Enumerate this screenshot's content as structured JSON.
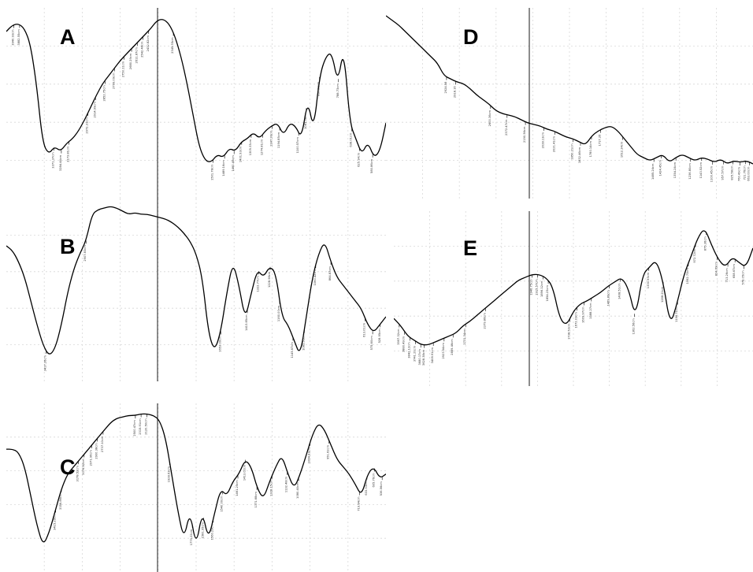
{
  "chart_data": [
    {
      "type": "line",
      "label": "A",
      "series": [
        {
          "values": [
            0.88,
            0.92,
            0.93,
            0.9,
            0.8,
            0.55,
            0.18,
            0.1,
            0.15,
            0.12,
            0.17,
            0.2,
            0.25,
            0.32,
            0.4,
            0.48,
            0.55,
            0.6,
            0.65,
            0.7,
            0.74,
            0.78,
            0.82,
            0.86,
            0.9,
            0.95,
            0.96,
            0.93,
            0.85,
            0.72,
            0.55,
            0.35,
            0.15,
            0.06,
            0.05,
            0.1,
            0.08,
            0.14,
            0.12,
            0.18,
            0.2,
            0.24,
            0.2,
            0.25,
            0.28,
            0.3,
            0.22,
            0.3,
            0.28,
            0.2,
            0.45,
            0.25,
            0.6,
            0.72,
            0.75,
            0.55,
            0.78,
            0.3,
            0.2,
            0.1,
            0.18,
            0.08,
            0.12,
            0.3
          ]
        }
      ],
      "peaks": [
        {
          "x": 0.02,
          "label": "3940.93cm"
        },
        {
          "x": 0.035,
          "label": "3882.55cm"
        },
        {
          "x": 0.125,
          "label": "3371.37cm"
        },
        {
          "x": 0.145,
          "label": "3284.44cm"
        },
        {
          "x": 0.165,
          "label": "3173.81cm"
        },
        {
          "x": 0.215,
          "label": "2972.31cm"
        },
        {
          "x": 0.235,
          "label": "2914.99cm"
        },
        {
          "x": 0.26,
          "label": "2852.75cm"
        },
        {
          "x": 0.285,
          "label": "2799.09cm"
        },
        {
          "x": 0.31,
          "label": "2750.11cm"
        },
        {
          "x": 0.33,
          "label": "2680.29cm"
        },
        {
          "x": 0.345,
          "label": "2611.87cm"
        },
        {
          "x": 0.36,
          "label": "2542.48cm"
        },
        {
          "x": 0.375,
          "label": "2432.82cm"
        },
        {
          "x": 0.44,
          "label": "2345.35cm"
        },
        {
          "x": 0.545,
          "label": "1501.78cm"
        },
        {
          "x": 0.575,
          "label": "1489.16cm"
        },
        {
          "x": 0.6,
          "label": "1460.49cm"
        },
        {
          "x": 0.62,
          "label": "1401.93cm"
        },
        {
          "x": 0.645,
          "label": "1305.33cm"
        },
        {
          "x": 0.675,
          "label": "1274.81cm"
        },
        {
          "x": 0.7,
          "label": "1247.99cm"
        },
        {
          "x": 0.72,
          "label": "1194.85cm"
        },
        {
          "x": 0.77,
          "label": "1100.57cm"
        },
        {
          "x": 0.79,
          "label": "1081.38cm"
        },
        {
          "x": 0.825,
          "label": "887.98cm"
        },
        {
          "x": 0.875,
          "label": "788.73cm"
        },
        {
          "x": 0.91,
          "label": "638.01cm"
        },
        {
          "x": 0.93,
          "label": "625.14cm"
        },
        {
          "x": 0.965,
          "label": "580.86cm"
        }
      ]
    },
    {
      "type": "line",
      "label": "B",
      "series": [
        {
          "values": [
            0.75,
            0.72,
            0.65,
            0.55,
            0.4,
            0.25,
            0.12,
            0.05,
            0.1,
            0.25,
            0.45,
            0.6,
            0.7,
            0.78,
            0.95,
            0.98,
            0.99,
            1.0,
            0.99,
            0.97,
            0.95,
            0.96,
            0.95,
            0.95,
            0.94,
            0.93,
            0.92,
            0.9,
            0.87,
            0.83,
            0.78,
            0.7,
            0.55,
            0.2,
            0.08,
            0.2,
            0.45,
            0.65,
            0.5,
            0.28,
            0.45,
            0.6,
            0.55,
            0.62,
            0.58,
            0.3,
            0.25,
            0.15,
            0.05,
            0.3,
            0.55,
            0.7,
            0.78,
            0.65,
            0.55,
            0.5,
            0.45,
            0.4,
            0.35,
            0.25,
            0.2,
            0.25,
            0.3
          ]
        }
      ],
      "peaks": [
        {
          "x": 0.105,
          "label": "3417.26cm"
        },
        {
          "x": 0.21,
          "label": "2907.83cm"
        },
        {
          "x": 0.565,
          "label": "1653.00cm"
        },
        {
          "x": 0.635,
          "label": "1413.85cm"
        },
        {
          "x": 0.665,
          "label": "1322.77cm"
        },
        {
          "x": 0.695,
          "label": "1228.98cm"
        },
        {
          "x": 0.72,
          "label": "1160.00cm"
        },
        {
          "x": 0.755,
          "label": "1145.67cm"
        },
        {
          "x": 0.785,
          "label": "1083.51cm"
        },
        {
          "x": 0.815,
          "label": "1060.42cm"
        },
        {
          "x": 0.855,
          "label": "864.87cm"
        },
        {
          "x": 0.945,
          "label": "613.01cm"
        },
        {
          "x": 0.965,
          "label": "575.60cm"
        },
        {
          "x": 0.985,
          "label": "528.95cm"
        }
      ]
    },
    {
      "type": "line",
      "label": "C",
      "series": [
        {
          "values": [
            0.72,
            0.72,
            0.7,
            0.6,
            0.4,
            0.2,
            0.06,
            0.15,
            0.3,
            0.45,
            0.55,
            0.6,
            0.65,
            0.7,
            0.75,
            0.8,
            0.85,
            0.9,
            0.93,
            0.94,
            0.95,
            0.95,
            0.96,
            0.96,
            0.95,
            0.92,
            0.8,
            0.55,
            0.3,
            0.1,
            0.3,
            0.05,
            0.3,
            0.1,
            0.28,
            0.45,
            0.4,
            0.5,
            0.55,
            0.65,
            0.6,
            0.45,
            0.38,
            0.5,
            0.6,
            0.68,
            0.55,
            0.45,
            0.55,
            0.68,
            0.82,
            0.9,
            0.85,
            0.75,
            0.65,
            0.6,
            0.55,
            0.48,
            0.4,
            0.55,
            0.6,
            0.52,
            0.55
          ]
        }
      ],
      "peaks": [
        {
          "x": 0.13,
          "label": "3415.29cm"
        },
        {
          "x": 0.145,
          "label": "3356.86cm"
        },
        {
          "x": 0.19,
          "label": "3178.52cm"
        },
        {
          "x": 0.205,
          "label": "3076.82cm"
        },
        {
          "x": 0.225,
          "label": "2971.96cm"
        },
        {
          "x": 0.24,
          "label": "2900.38cm"
        },
        {
          "x": 0.255,
          "label": "2737.10cm"
        },
        {
          "x": 0.34,
          "label": "2500.47cm"
        },
        {
          "x": 0.355,
          "label": "2315.91cm"
        },
        {
          "x": 0.37,
          "label": "2120.50cm"
        },
        {
          "x": 0.43,
          "label": "1928.63cm"
        },
        {
          "x": 0.49,
          "label": "1779.22cm"
        },
        {
          "x": 0.52,
          "label": "1581.95cm"
        },
        {
          "x": 0.545,
          "label": "1560.29cm"
        },
        {
          "x": 0.57,
          "label": "1540.00cm"
        },
        {
          "x": 0.61,
          "label": "1461.25cm"
        },
        {
          "x": 0.63,
          "label": "1413.02cm"
        },
        {
          "x": 0.66,
          "label": "1371.68cm"
        },
        {
          "x": 0.7,
          "label": "1328.15cm"
        },
        {
          "x": 0.74,
          "label": "1132.48cm"
        },
        {
          "x": 0.77,
          "label": "1080.40cm"
        },
        {
          "x": 0.8,
          "label": "1064.93cm"
        },
        {
          "x": 0.85,
          "label": "951.62cm"
        },
        {
          "x": 0.93,
          "label": "719.84cm"
        },
        {
          "x": 0.95,
          "label": "633.33cm"
        },
        {
          "x": 0.97,
          "label": "605.76cm"
        },
        {
          "x": 0.99,
          "label": "536.56cm"
        }
      ]
    },
    {
      "type": "line",
      "label": "D",
      "series": [
        {
          "values": [
            0.98,
            0.95,
            0.92,
            0.88,
            0.84,
            0.8,
            0.76,
            0.72,
            0.68,
            0.6,
            0.58,
            0.56,
            0.55,
            0.52,
            0.48,
            0.45,
            0.42,
            0.38,
            0.36,
            0.35,
            0.34,
            0.32,
            0.3,
            0.29,
            0.28,
            0.26,
            0.25,
            0.23,
            0.21,
            0.2,
            0.18,
            0.16,
            0.22,
            0.25,
            0.27,
            0.28,
            0.25,
            0.2,
            0.15,
            0.1,
            0.08,
            0.06,
            0.08,
            0.1,
            0.05,
            0.08,
            0.1,
            0.08,
            0.06,
            0.08,
            0.07,
            0.05,
            0.07,
            0.04,
            0.06,
            0.05,
            0.06,
            0.04
          ]
        }
      ],
      "peaks": [
        {
          "x": 0.165,
          "label": "2924.58"
        },
        {
          "x": 0.19,
          "label": "2918.16"
        },
        {
          "x": 0.285,
          "label": "2600.36cm"
        },
        {
          "x": 0.33,
          "label": "2372.47cm"
        },
        {
          "x": 0.38,
          "label": "2190.56cm"
        },
        {
          "x": 0.43,
          "label": "2028.13cm"
        },
        {
          "x": 0.46,
          "label": "2021.41cm"
        },
        {
          "x": 0.51,
          "label": "1850.21cm"
        },
        {
          "x": 0.53,
          "label": "1832.46cm"
        },
        {
          "x": 0.56,
          "label": "1780.14cm"
        },
        {
          "x": 0.585,
          "label": "1717.26"
        },
        {
          "x": 0.645,
          "label": "1612.24cm"
        },
        {
          "x": 0.73,
          "label": "1485.24cm"
        },
        {
          "x": 0.75,
          "label": "1424.45cm"
        },
        {
          "x": 0.79,
          "label": "1354.24cm"
        },
        {
          "x": 0.83,
          "label": "1236.80cm"
        },
        {
          "x": 0.86,
          "label": "1143.52cm"
        },
        {
          "x": 0.89,
          "label": "1100.45cm"
        },
        {
          "x": 0.92,
          "label": "957.57cm"
        },
        {
          "x": 0.945,
          "label": "825.58cm"
        },
        {
          "x": 0.965,
          "label": "760.49cm"
        },
        {
          "x": 0.98,
          "label": "721.76cm"
        },
        {
          "x": 0.99,
          "label": "663.00cm"
        }
      ]
    },
    {
      "type": "line",
      "label": "E",
      "series": [
        {
          "values": [
            0.3,
            0.25,
            0.18,
            0.15,
            0.12,
            0.12,
            0.14,
            0.16,
            0.18,
            0.2,
            0.25,
            0.28,
            0.32,
            0.36,
            0.4,
            0.44,
            0.48,
            0.52,
            0.56,
            0.58,
            0.6,
            0.6,
            0.58,
            0.52,
            0.3,
            0.25,
            0.35,
            0.4,
            0.42,
            0.45,
            0.48,
            0.52,
            0.55,
            0.58,
            0.5,
            0.3,
            0.6,
            0.65,
            0.7,
            0.55,
            0.25,
            0.4,
            0.6,
            0.72,
            0.85,
            0.92,
            0.8,
            0.7,
            0.65,
            0.72,
            0.68,
            0.65,
            0.78
          ]
        }
      ],
      "peaks": [
        {
          "x": 0.015,
          "label": "3997.32cm"
        },
        {
          "x": 0.03,
          "label": "3880.49cm"
        },
        {
          "x": 0.045,
          "label": "3842.12cm"
        },
        {
          "x": 0.06,
          "label": "3741.21cm"
        },
        {
          "x": 0.075,
          "label": "3680.17cm"
        },
        {
          "x": 0.085,
          "label": "3628.38cm"
        },
        {
          "x": 0.11,
          "label": "3408.91cm"
        },
        {
          "x": 0.14,
          "label": "2923.54cm"
        },
        {
          "x": 0.165,
          "label": "2889.46cm"
        },
        {
          "x": 0.2,
          "label": "2731.34cm"
        },
        {
          "x": 0.255,
          "label": "2379.86cm"
        },
        {
          "x": 0.385,
          "label": "1946.75cm"
        },
        {
          "x": 0.4,
          "label": "1915.57cm"
        },
        {
          "x": 0.415,
          "label": "1896.12cm"
        },
        {
          "x": 0.43,
          "label": "1854.23cm"
        },
        {
          "x": 0.49,
          "label": "1738.53cm"
        },
        {
          "x": 0.51,
          "label": "1672.03cm"
        },
        {
          "x": 0.53,
          "label": "1609.97cm"
        },
        {
          "x": 0.55,
          "label": "1588.27cm"
        },
        {
          "x": 0.6,
          "label": "1469.89cm"
        },
        {
          "x": 0.63,
          "label": "1408.51cm"
        },
        {
          "x": 0.67,
          "label": "1362.56cm"
        },
        {
          "x": 0.71,
          "label": "1330.93cm"
        },
        {
          "x": 0.75,
          "label": "1288.21cm"
        },
        {
          "x": 0.79,
          "label": "1196.71cm"
        },
        {
          "x": 0.82,
          "label": "1062.73cm"
        },
        {
          "x": 0.84,
          "label": "972.72cm"
        },
        {
          "x": 0.87,
          "label": "875.36cm"
        },
        {
          "x": 0.9,
          "label": "824.69cm"
        },
        {
          "x": 0.93,
          "label": "713.26cm"
        },
        {
          "x": 0.95,
          "label": "658.67cm"
        },
        {
          "x": 0.975,
          "label": "578.05cm"
        }
      ]
    }
  ]
}
